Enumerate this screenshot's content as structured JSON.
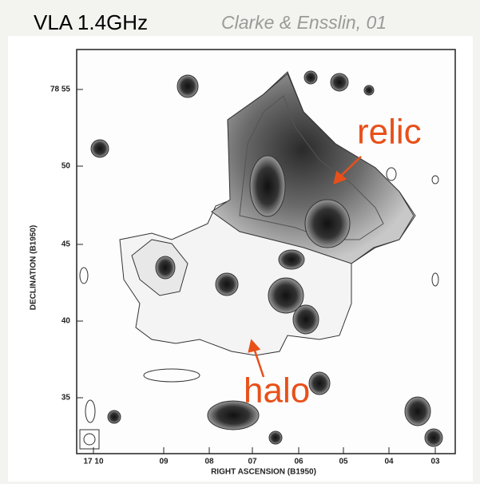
{
  "header": {
    "title": "VLA  1.4GHz",
    "citation": "Clarke & Ensslin, 01"
  },
  "figure": {
    "y_ticks": [
      "78 55",
      "50",
      "45",
      "40",
      "35"
    ],
    "x_ticks": [
      "17 10",
      "09",
      "08",
      "07",
      "06",
      "05",
      "04",
      "03"
    ],
    "y_label": "DECLINATION (B1950)",
    "x_label": "RIGHT ASCENSION (B1950)",
    "annotations": [
      "relic",
      "halo"
    ]
  }
}
